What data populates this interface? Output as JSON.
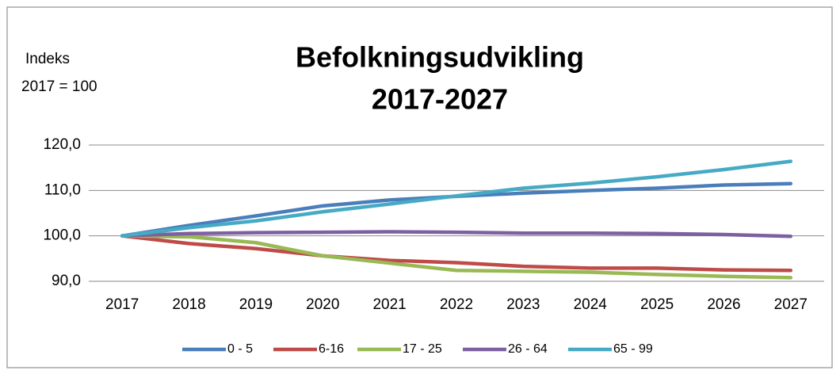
{
  "chart_data": {
    "type": "line",
    "title": [
      "Befolkningsudvikling",
      "2017-2027"
    ],
    "y_label": [
      "Indeks",
      "2017  = 100"
    ],
    "categories": [
      "2017",
      "2018",
      "2019",
      "2020",
      "2021",
      "2022",
      "2023",
      "2024",
      "2025",
      "2026",
      "2027"
    ],
    "series": [
      {
        "name": "0 - 5",
        "color": "#4a7ebb",
        "values": [
          100,
          102.3,
          104.4,
          106.6,
          107.9,
          108.7,
          109.4,
          110.0,
          110.5,
          111.2,
          111.5
        ]
      },
      {
        "name": "6-16",
        "color": "#be4b48",
        "values": [
          100,
          98.3,
          97.2,
          95.6,
          94.6,
          94.1,
          93.3,
          92.9,
          92.9,
          92.5,
          92.4
        ]
      },
      {
        "name": "17 - 25",
        "color": "#98b954",
        "values": [
          100,
          99.8,
          98.5,
          95.6,
          94.0,
          92.4,
          92.2,
          92.0,
          91.5,
          91.1,
          90.8
        ]
      },
      {
        "name": "26 - 64",
        "color": "#7d60a0",
        "values": [
          100,
          100.5,
          100.7,
          100.8,
          100.9,
          100.8,
          100.6,
          100.6,
          100.5,
          100.3,
          99.9
        ]
      },
      {
        "name": "65 - 99",
        "color": "#46aac5",
        "values": [
          100,
          101.8,
          103.3,
          105.3,
          107.0,
          108.8,
          110.5,
          111.6,
          113.0,
          114.6,
          116.4
        ]
      }
    ],
    "ylim": [
      90,
      120
    ],
    "yticks": [
      {
        "value": 90,
        "label": "90,0"
      },
      {
        "value": 100,
        "label": "100,0"
      },
      {
        "value": 110,
        "label": "110,0"
      },
      {
        "value": 120,
        "label": "120,0"
      }
    ],
    "grid": true,
    "legend": "bottom"
  }
}
